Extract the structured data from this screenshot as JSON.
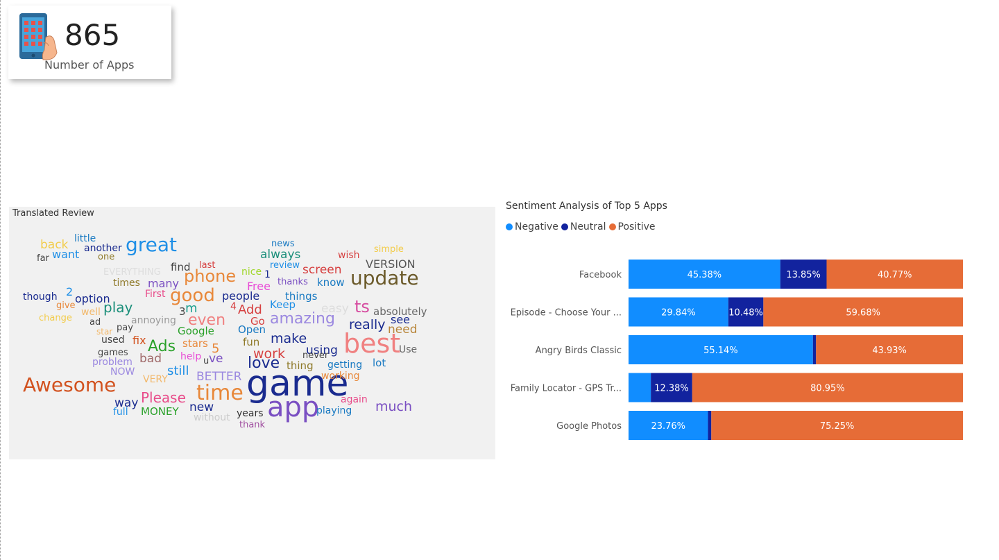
{
  "kpi": {
    "value": "865",
    "label": "Number of Apps",
    "icon": "smartphone-hand-icon"
  },
  "wordcloud": {
    "title": "Translated Review",
    "words": [
      {
        "text": "game",
        "color": "#1a2b8f"
      },
      {
        "text": "app",
        "color": "#7a4fc2"
      },
      {
        "text": "best",
        "color": "#f08080"
      },
      {
        "text": "update",
        "color": "#6b5a2a"
      },
      {
        "text": "time",
        "color": "#e8883a"
      },
      {
        "text": "Awesome",
        "color": "#d2521f"
      },
      {
        "text": "great",
        "color": "#1f8fe6"
      },
      {
        "text": "good",
        "color": "#e8883a"
      },
      {
        "text": "phone",
        "color": "#e8883a"
      },
      {
        "text": "amazing",
        "color": "#9b88e0"
      },
      {
        "text": "even",
        "color": "#f08080"
      },
      {
        "text": "love",
        "color": "#1a2b8f"
      },
      {
        "text": "Ads",
        "color": "#2aa12a"
      },
      {
        "text": "ts",
        "color": "#d64ca0"
      },
      {
        "text": "play",
        "color": "#1b8f7a"
      },
      {
        "text": "Please",
        "color": "#e84c8a"
      },
      {
        "text": "really",
        "color": "#1a2b8f"
      },
      {
        "text": "make",
        "color": "#1a2b8f"
      },
      {
        "text": "work",
        "color": "#d64040"
      },
      {
        "text": "much",
        "color": "#7a4fc2"
      },
      {
        "text": "BETTER",
        "color": "#9b88e0"
      },
      {
        "text": "still",
        "color": "#1f8fe6"
      },
      {
        "text": "need",
        "color": "#b8863a"
      },
      {
        "text": "using",
        "color": "#1a2b8f"
      },
      {
        "text": "Add",
        "color": "#d64040"
      },
      {
        "text": "way",
        "color": "#1a2b8f"
      },
      {
        "text": "new",
        "color": "#1a2b8f"
      },
      {
        "text": "MONEY",
        "color": "#2aa12a"
      },
      {
        "text": "absolutely",
        "color": "#666666"
      },
      {
        "text": "people",
        "color": "#1a2b8f"
      },
      {
        "text": "many",
        "color": "#7a4fc2"
      },
      {
        "text": "option",
        "color": "#1a2b8f"
      },
      {
        "text": "want",
        "color": "#1f8fe6"
      },
      {
        "text": "always",
        "color": "#1b8f7a"
      },
      {
        "text": "screen",
        "color": "#d64040"
      },
      {
        "text": "VERSION",
        "color": "#555555"
      },
      {
        "text": "back",
        "color": "#f2cc4a"
      },
      {
        "text": "easy",
        "color": "#dddddd"
      },
      {
        "text": "m",
        "color": "#1b9f8f"
      },
      {
        "text": "Keep",
        "color": "#1f8fe6"
      },
      {
        "text": "things",
        "color": "#1a7ac2"
      },
      {
        "text": "know",
        "color": "#1a7ac2"
      },
      {
        "text": "Free",
        "color": "#e84cd6"
      },
      {
        "text": "see",
        "color": "#1a2b8f"
      },
      {
        "text": "fun",
        "color": "#8f7a2a"
      },
      {
        "text": "Open",
        "color": "#1a7ac2"
      },
      {
        "text": "Go",
        "color": "#d64040"
      },
      {
        "text": "stars",
        "color": "#e8883a"
      },
      {
        "text": "5",
        "color": "#e8883a"
      },
      {
        "text": "fix",
        "color": "#d2521f"
      },
      {
        "text": "bad",
        "color": "#a06a6a"
      },
      {
        "text": "thing",
        "color": "#8f7a2a"
      },
      {
        "text": "lot",
        "color": "#1a7ac2"
      },
      {
        "text": "Use",
        "color": "#666666"
      },
      {
        "text": "getting",
        "color": "#1a7ac2"
      },
      {
        "text": "working",
        "color": "#e8883a"
      },
      {
        "text": "again",
        "color": "#e84c8a"
      },
      {
        "text": "playing",
        "color": "#1a7ac2"
      },
      {
        "text": "NOW",
        "color": "#9b88e0"
      },
      {
        "text": "full",
        "color": "#1f8fe6"
      },
      {
        "text": "find",
        "color": "#444444"
      },
      {
        "text": "Google",
        "color": "#2aa12a"
      },
      {
        "text": "First",
        "color": "#e84c8a"
      },
      {
        "text": "ve",
        "color": "#7a4fc2"
      },
      {
        "text": "help",
        "color": "#e84cd6"
      },
      {
        "text": "years",
        "color": "#333333"
      },
      {
        "text": "thank",
        "color": "#a04fa0"
      },
      {
        "text": "without",
        "color": "#cccccc"
      },
      {
        "text": "VERY",
        "color": "#f2b86a"
      },
      {
        "text": "problem",
        "color": "#9b88e0"
      },
      {
        "text": "games",
        "color": "#444444"
      },
      {
        "text": "used",
        "color": "#444444"
      },
      {
        "text": "annoying",
        "color": "#999999"
      },
      {
        "text": "give",
        "color": "#e8883a"
      },
      {
        "text": "well",
        "color": "#f2b86a"
      },
      {
        "text": "change",
        "color": "#f2cc4a"
      },
      {
        "text": "though",
        "color": "#1a2b8f"
      },
      {
        "text": "2",
        "color": "#1f8fe6"
      },
      {
        "text": "3",
        "color": "#444444"
      },
      {
        "text": "4",
        "color": "#d64040"
      },
      {
        "text": "1",
        "color": "#1a2b8f"
      },
      {
        "text": "times",
        "color": "#8f7a2a"
      },
      {
        "text": "EVERYTHING",
        "color": "#dddddd"
      },
      {
        "text": "little",
        "color": "#1a7ac2"
      },
      {
        "text": "another",
        "color": "#1a2b8f"
      },
      {
        "text": "one",
        "color": "#8f7a2a"
      },
      {
        "text": "far",
        "color": "#444444"
      },
      {
        "text": "news",
        "color": "#1a7ac2"
      },
      {
        "text": "review",
        "color": "#1f8fe6"
      },
      {
        "text": "nice",
        "color": "#a0d62a"
      },
      {
        "text": "last",
        "color": "#d64040"
      },
      {
        "text": "thanks",
        "color": "#7a4fc2"
      },
      {
        "text": "wish",
        "color": "#d64040"
      },
      {
        "text": "simple",
        "color": "#f2cc4a"
      },
      {
        "text": "never",
        "color": "#444444"
      },
      {
        "text": "ad",
        "color": "#444444"
      },
      {
        "text": "pay",
        "color": "#444444"
      },
      {
        "text": "star",
        "color": "#f2b86a"
      },
      {
        "text": "u",
        "color": "#444444"
      }
    ]
  },
  "chart_data": {
    "type": "bar",
    "orientation": "horizontal",
    "stacked": "100%",
    "title": "Sentiment Analysis of Top 5 Apps",
    "legend_position": "top-left",
    "grid": false,
    "categories": [
      "Facebook",
      "Episode - Choose Your ...",
      "Angry Birds Classic",
      "Family Locator - GPS Tr...",
      "Google Photos"
    ],
    "series": [
      {
        "name": "Negative",
        "color": "#118dff",
        "values": [
          45.38,
          29.84,
          55.14,
          6.67,
          23.76
        ],
        "labels": [
          "45.38%",
          "29.84%",
          "55.14%",
          "",
          "23.76%"
        ]
      },
      {
        "name": "Neutral",
        "color": "#12239e",
        "values": [
          13.85,
          10.48,
          0.93,
          12.38,
          0.99
        ],
        "labels": [
          "13.85%",
          "10.48%",
          "",
          "12.38%",
          ""
        ]
      },
      {
        "name": "Positive",
        "color": "#e66c37",
        "values": [
          40.77,
          59.68,
          43.93,
          80.95,
          75.25
        ],
        "labels": [
          "40.77%",
          "59.68%",
          "43.93%",
          "80.95%",
          "75.25%"
        ]
      }
    ]
  }
}
